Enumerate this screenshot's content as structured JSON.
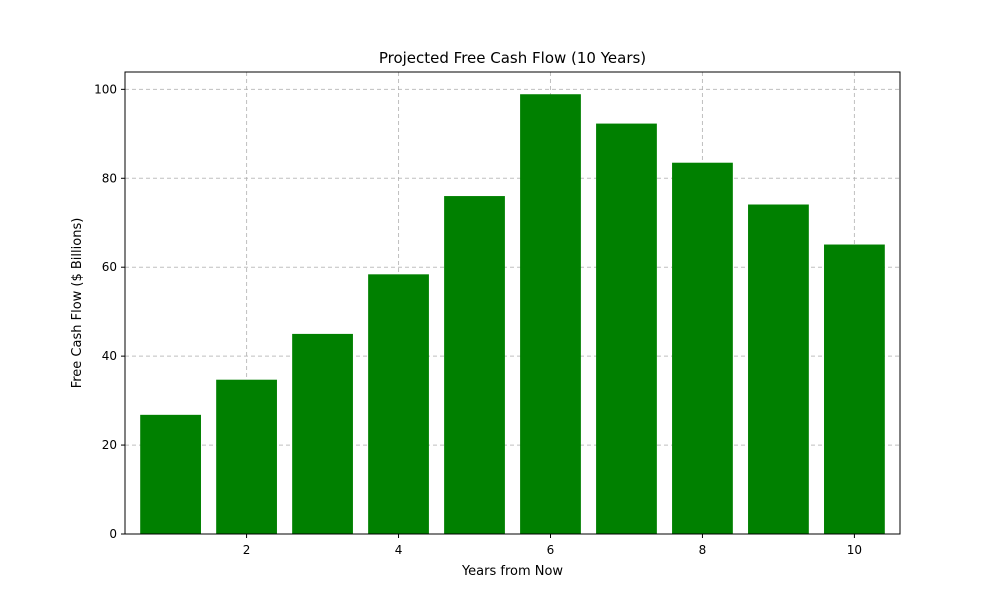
{
  "chart_data": {
    "type": "bar",
    "title": "Projected Free Cash Flow (10 Years)",
    "xlabel": "Years from Now",
    "ylabel": "Free Cash Flow ($ Billions)",
    "x": [
      1,
      2,
      3,
      4,
      5,
      6,
      7,
      8,
      9,
      10
    ],
    "values": [
      26.8,
      34.7,
      45.0,
      58.4,
      76.0,
      98.9,
      92.3,
      83.5,
      74.1,
      65.1
    ],
    "xticks": [
      2,
      4,
      6,
      8,
      10
    ],
    "yticks": [
      0,
      20,
      40,
      60,
      80,
      100
    ],
    "xlim": [
      0.4,
      10.6
    ],
    "ylim": [
      0,
      103.9
    ],
    "grid": true,
    "colors": {
      "bar": "#008000"
    }
  }
}
